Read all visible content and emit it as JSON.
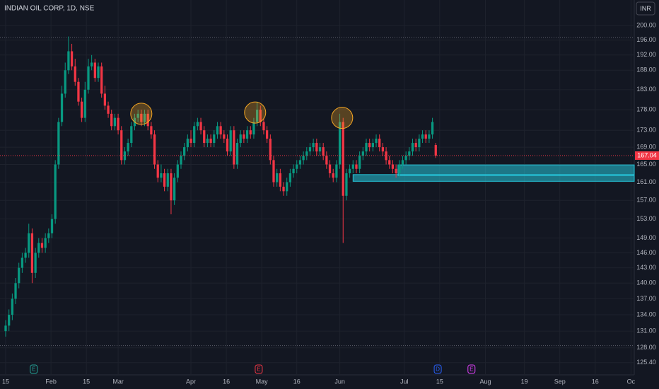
{
  "chart_data": {
    "type": "candlestick",
    "title": "INDIAN OIL CORP, 1D, NSE",
    "currency": "INR",
    "x": [
      0,
      1,
      2,
      3,
      4,
      5,
      6,
      7,
      8,
      9,
      10,
      11,
      12,
      13,
      14,
      15,
      16,
      17,
      18,
      19,
      20,
      21,
      22,
      23,
      24,
      25,
      26,
      27,
      28,
      29,
      30,
      31,
      32,
      33,
      34,
      35,
      36,
      37,
      38,
      39,
      40,
      41,
      42,
      43,
      44,
      45,
      46,
      47,
      48,
      49,
      50,
      51,
      52,
      53,
      54,
      55,
      56,
      57,
      58,
      59,
      60,
      61,
      62,
      63,
      64,
      65,
      66,
      67,
      68,
      69,
      70,
      71,
      72,
      73,
      74,
      75,
      76,
      77,
      78,
      79,
      80,
      81,
      82,
      83,
      84,
      85,
      86,
      87,
      88,
      89,
      90,
      91,
      92,
      93,
      94,
      95,
      96,
      97,
      98,
      99,
      100,
      101,
      102,
      103,
      104,
      105,
      106,
      107,
      108,
      109,
      110,
      111,
      112,
      113,
      114,
      115,
      116,
      117,
      118,
      119,
      120,
      121,
      122,
      123,
      124,
      125,
      126,
      127,
      128,
      129,
      130
    ],
    "open": [
      131,
      132,
      134,
      137,
      140,
      143,
      145,
      146,
      150,
      142,
      146,
      148,
      147,
      149,
      150,
      153,
      165,
      175,
      182,
      188,
      193,
      189,
      185,
      180,
      176,
      183,
      189,
      190,
      186,
      189,
      182,
      179,
      177,
      174,
      176,
      173,
      166,
      168,
      170,
      174,
      176,
      177,
      175,
      177,
      174,
      172,
      165,
      162,
      163,
      160,
      163,
      157,
      162,
      165,
      167,
      169,
      171,
      170,
      174,
      175,
      173,
      170,
      171,
      170,
      172,
      174,
      172,
      171,
      168,
      173,
      165,
      170,
      172,
      171,
      173,
      172,
      175,
      178,
      175,
      173,
      171,
      166,
      161,
      163,
      160,
      159,
      161,
      163,
      164,
      165,
      166,
      167,
      168,
      169,
      170,
      168,
      169,
      167,
      165,
      163,
      162,
      165,
      175,
      158,
      163,
      164,
      165,
      164,
      167,
      168,
      170,
      169,
      170,
      171,
      169,
      168,
      166,
      165,
      164,
      163,
      165,
      166,
      167,
      168,
      170,
      169,
      171,
      172,
      171,
      172,
      169.5
    ],
    "high": [
      133,
      135,
      138,
      141,
      144,
      146,
      147,
      152,
      151,
      147,
      149,
      149,
      150,
      151,
      154,
      166,
      176,
      184,
      190,
      197,
      195,
      191,
      186,
      181,
      185,
      191,
      192,
      191,
      190,
      190,
      184,
      180,
      178,
      177,
      177,
      174,
      169,
      171,
      175,
      177,
      178,
      178,
      178,
      178,
      175,
      173,
      166,
      165,
      164,
      164,
      164,
      163,
      166,
      168,
      170,
      172,
      173,
      175,
      176,
      176,
      174,
      172,
      172,
      173,
      175,
      175,
      173,
      172,
      174,
      174,
      171,
      173,
      173,
      174,
      174,
      176,
      180,
      179,
      176,
      174,
      172,
      167,
      164,
      164,
      161,
      162,
      164,
      165,
      166,
      167,
      168,
      169,
      170,
      171,
      171,
      170,
      170,
      168,
      166,
      164,
      166,
      177,
      176,
      164,
      165,
      166,
      166,
      168,
      169,
      171,
      171,
      171,
      172,
      172,
      170,
      169,
      167,
      166,
      165,
      166,
      167,
      168,
      169,
      171,
      171,
      172,
      173,
      173,
      173,
      176,
      170
    ],
    "low": [
      130,
      131,
      133,
      136,
      139,
      142,
      144,
      145,
      140,
      141,
      145,
      146,
      146,
      148,
      149,
      152,
      164,
      174,
      181,
      187,
      188,
      184,
      179,
      175,
      175,
      182,
      188,
      185,
      185,
      181,
      178,
      176,
      173,
      173,
      172,
      165,
      165,
      167,
      169,
      173,
      175,
      174,
      174,
      173,
      171,
      164,
      161,
      161,
      159,
      159,
      154,
      156,
      161,
      164,
      166,
      168,
      169,
      169,
      173,
      172,
      169,
      169,
      169,
      169,
      171,
      171,
      170,
      167,
      167,
      164,
      164,
      169,
      170,
      170,
      171,
      171,
      174,
      174,
      172,
      170,
      165,
      160,
      160,
      159,
      158,
      158,
      160,
      162,
      163,
      164,
      165,
      166,
      167,
      168,
      167,
      167,
      166,
      164,
      162,
      161,
      161,
      164,
      148,
      157,
      162,
      163,
      163,
      163,
      166,
      167,
      168,
      168,
      169,
      168,
      167,
      165,
      164,
      163,
      162,
      162,
      164,
      165,
      166,
      167,
      168,
      168,
      170,
      170,
      170,
      171,
      166.5
    ],
    "close": [
      132,
      134,
      137,
      140,
      143,
      145,
      146,
      150,
      142,
      146,
      148,
      147,
      149,
      150,
      153,
      165,
      175,
      182,
      188,
      193,
      189,
      185,
      180,
      176,
      183,
      189,
      190,
      186,
      189,
      182,
      179,
      177,
      174,
      176,
      173,
      166,
      168,
      170,
      174,
      176,
      177,
      175,
      177,
      174,
      172,
      165,
      162,
      163,
      160,
      163,
      157,
      162,
      165,
      167,
      169,
      171,
      170,
      174,
      175,
      173,
      170,
      171,
      170,
      172,
      174,
      172,
      171,
      168,
      173,
      165,
      170,
      172,
      171,
      173,
      172,
      175,
      178,
      175,
      173,
      171,
      166,
      161,
      163,
      160,
      159,
      161,
      163,
      164,
      165,
      166,
      167,
      168,
      169,
      170,
      168,
      169,
      167,
      165,
      163,
      162,
      165,
      175,
      158,
      163,
      164,
      165,
      164,
      167,
      168,
      170,
      169,
      170,
      171,
      169,
      168,
      166,
      165,
      164,
      163,
      165,
      166,
      167,
      168,
      170,
      169,
      171,
      172,
      171,
      172,
      175,
      167.04
    ],
    "up_color": "#089981",
    "down_color": "#f23645",
    "log_scale": true,
    "grid": true,
    "ylim": [
      123.3,
      207.2
    ],
    "yticks": [
      {
        "value": 200,
        "label": "200.00"
      },
      {
        "value": 196,
        "label": "196.00"
      },
      {
        "value": 192,
        "label": "192.00"
      },
      {
        "value": 188,
        "label": "188.00"
      },
      {
        "value": 183,
        "label": "183.00"
      },
      {
        "value": 178,
        "label": "178.00"
      },
      {
        "value": 173,
        "label": "173.00"
      },
      {
        "value": 169,
        "label": "169.00"
      },
      {
        "value": 165,
        "label": "165.00"
      },
      {
        "value": 161,
        "label": "161.00"
      },
      {
        "value": 157,
        "label": "157.00"
      },
      {
        "value": 153,
        "label": "153.00"
      },
      {
        "value": 149,
        "label": "149.00"
      },
      {
        "value": 146,
        "label": "146.00"
      },
      {
        "value": 143,
        "label": "143.00"
      },
      {
        "value": 140,
        "label": "140.00"
      },
      {
        "value": 137,
        "label": "137.00"
      },
      {
        "value": 134,
        "label": "134.00"
      },
      {
        "value": 131,
        "label": "131.00"
      },
      {
        "value": 128,
        "label": "128.00"
      },
      {
        "value": 125.4,
        "label": "125.40"
      }
    ],
    "xlim": [
      -1.71,
      190
    ],
    "xticks": [
      {
        "value": 0,
        "label": "15"
      },
      {
        "value": 13.7,
        "label": "Feb"
      },
      {
        "value": 24.4,
        "label": "15"
      },
      {
        "value": 34,
        "label": "Mar"
      },
      {
        "value": 56,
        "label": "Apr"
      },
      {
        "value": 66.7,
        "label": "16"
      },
      {
        "value": 77.4,
        "label": "May"
      },
      {
        "value": 88,
        "label": "16"
      },
      {
        "value": 101,
        "label": "Jun"
      },
      {
        "value": 120.5,
        "label": "Jul"
      },
      {
        "value": 131.2,
        "label": "15"
      },
      {
        "value": 145,
        "label": "Aug"
      },
      {
        "value": 156.8,
        "label": "19"
      },
      {
        "value": 167.5,
        "label": "Sep"
      },
      {
        "value": 178.2,
        "label": "16"
      },
      {
        "value": 189,
        "label": "Oc"
      }
    ],
    "reference_lines": [
      196.7,
      128.4
    ],
    "zones": [
      {
        "x": 105,
        "top": 162.7,
        "bottom": 161.2
      },
      {
        "x": 118.6,
        "top": 164.9,
        "bottom": 162.5
      }
    ],
    "zone_color": "#26c6da",
    "highlights": [
      {
        "x": 41,
        "y": 177
      },
      {
        "x": 75.4,
        "y": 177.3
      },
      {
        "x": 101.7,
        "y": 176
      }
    ],
    "highlight_color": "#f5a623",
    "events": [
      {
        "x": 8.5,
        "label": "E",
        "color": "#26a69a"
      },
      {
        "x": 76.5,
        "label": "E",
        "color": "#f23645"
      },
      {
        "x": 130.6,
        "label": "D",
        "color": "#2962ff"
      },
      {
        "x": 140.8,
        "label": "E",
        "color": "#e040fb"
      }
    ]
  }
}
